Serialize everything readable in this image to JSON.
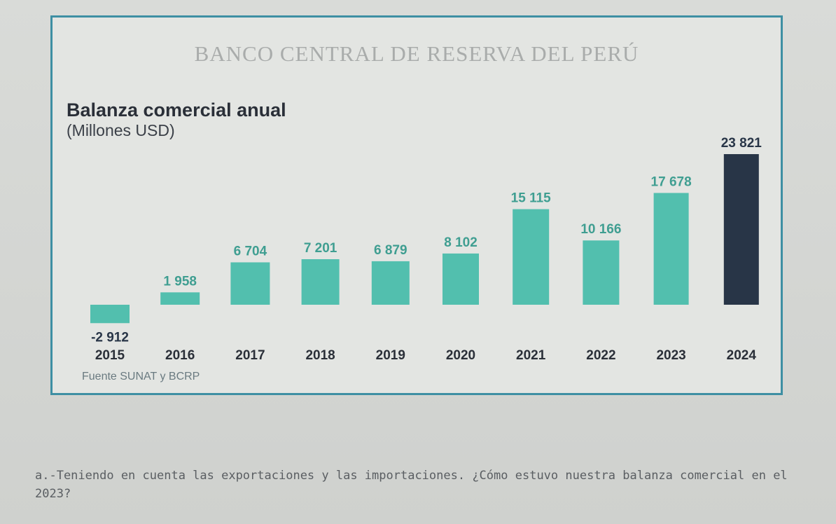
{
  "header": {
    "bank_name": "BANCO CENTRAL DE RESERVA DEL PERÚ"
  },
  "chart_data": {
    "type": "bar",
    "title": "Balanza comercial anual",
    "subtitle": "(Millones USD)",
    "categories": [
      "2015",
      "2016",
      "2017",
      "2018",
      "2019",
      "2020",
      "2021",
      "2022",
      "2023",
      "2024"
    ],
    "values": [
      -2912,
      1958,
      6704,
      7201,
      6879,
      8102,
      15115,
      10166,
      17678,
      23821
    ],
    "value_labels": [
      "-2 912",
      "1 958",
      "6 704",
      "7 201",
      "6 879",
      "8 102",
      "15 115",
      "10 166",
      "17 678",
      "23 821"
    ],
    "highlight_category": "2024",
    "colors": {
      "bar": "#52bfae",
      "bar_highlight": "#283547",
      "label": "#3f9e91",
      "label_highlight": "#283547"
    },
    "xlabel": "",
    "ylabel": "",
    "grid": false
  },
  "footer": {
    "source": "Fuente  SUNAT y BCRP"
  },
  "question": {
    "text": "a.-Teniendo en cuenta las exportaciones y las importaciones. ¿Cómo estuvo nuestra balanza comercial en el 2023?"
  }
}
